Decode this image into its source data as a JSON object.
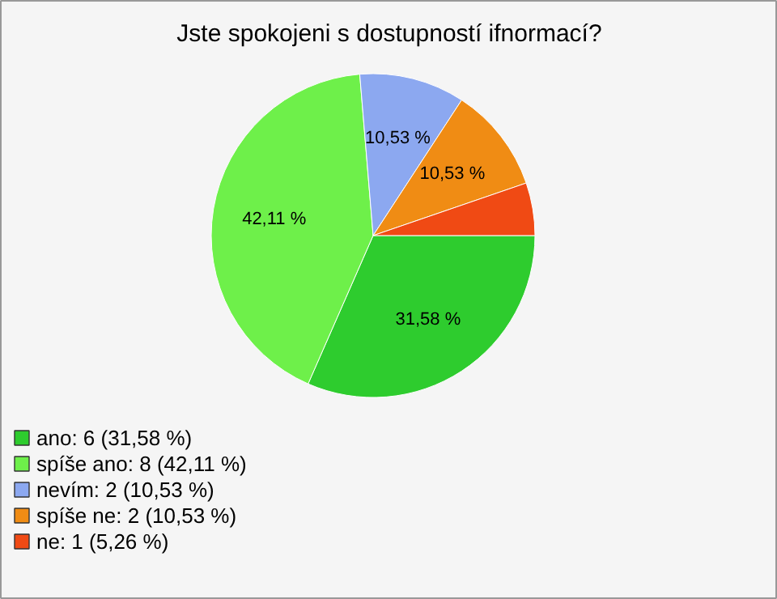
{
  "chart_data": {
    "type": "pie",
    "title": "Jste spokojeni s dostupností ifnormací?",
    "categories": [
      "ano: 6 (31,58 %)",
      "spíše ano: 8 (42,11 %)",
      "nevím: 2 (10,53 %)",
      "spíše ne: 2 (10,53 %)",
      "ne: 1 (5,26 %)"
    ],
    "values": [
      31.58,
      42.11,
      10.53,
      10.53,
      5.26
    ],
    "colors": [
      "#2ecc2e",
      "#6ef04a",
      "#8ca8f0",
      "#f08c14",
      "#f04a14"
    ],
    "value_labels": [
      "31,58 %",
      "42,11 %",
      "10,53 %",
      "10,53 %",
      null
    ],
    "legend": "bottom left"
  }
}
